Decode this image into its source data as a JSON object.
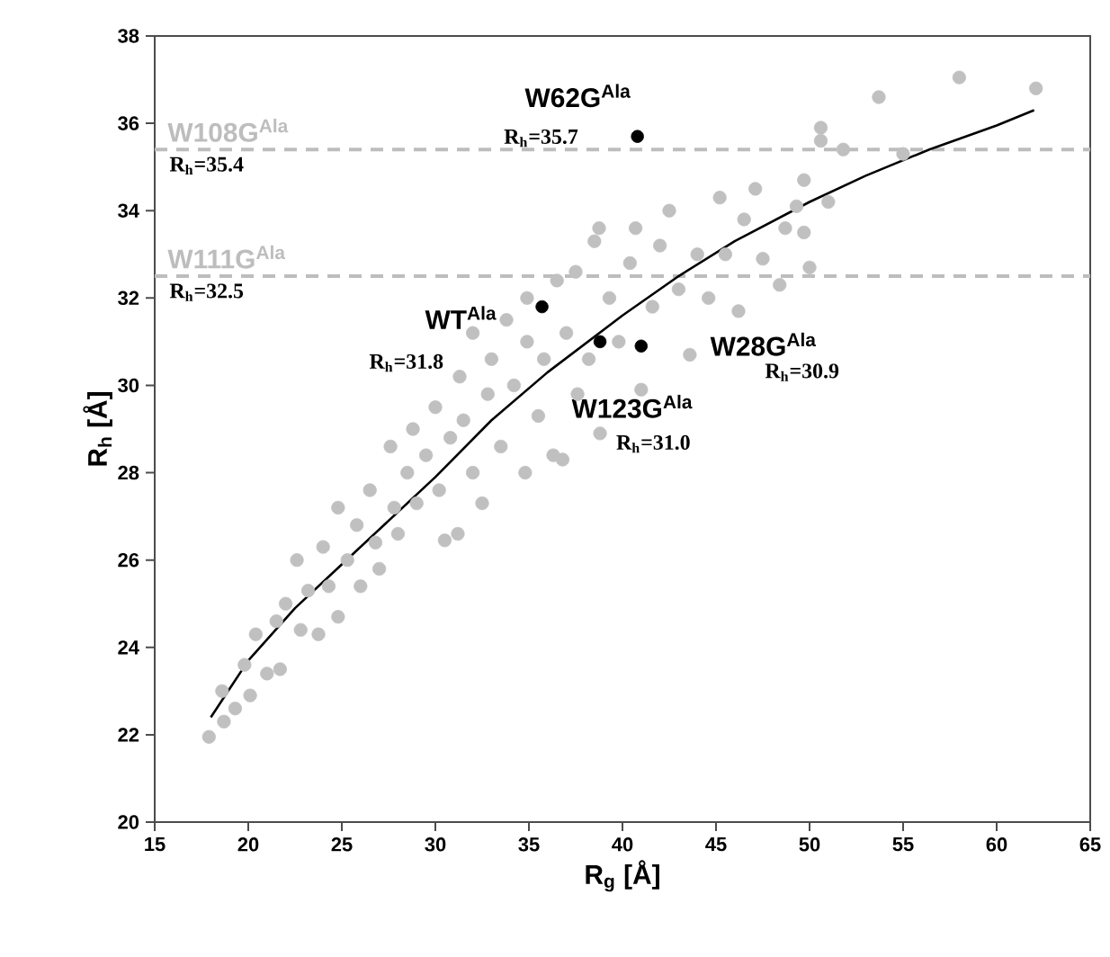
{
  "chart_data": {
    "type": "scatter",
    "xlabel": "R$_{g}$ [Å]",
    "ylabel": "R$_{h}$ [Å]",
    "xlim": [
      15,
      65
    ],
    "ylim": [
      20,
      38
    ],
    "xticks": [
      15,
      20,
      25,
      30,
      35,
      40,
      45,
      50,
      55,
      60,
      65
    ],
    "yticks": [
      20,
      22,
      24,
      26,
      28,
      30,
      32,
      34,
      36,
      38
    ],
    "grid": false,
    "series": [
      {
        "marker": "circle",
        "color": "#c0c0c0",
        "x": [
          17.9,
          18.7,
          18.6,
          19.3,
          20.1,
          19.8,
          20.4,
          21.0,
          21.7,
          21.5,
          22.0,
          22.6,
          22.8,
          23.2,
          23.75,
          24.0,
          24.3,
          24.8,
          24.8,
          25.3,
          25.8,
          26.0,
          26.5,
          26.8,
          27.0,
          27.6,
          27.8,
          28.0,
          28.5,
          28.8,
          29.0,
          29.5,
          30.0,
          30.2,
          30.5,
          30.8,
          31.2,
          31.3,
          31.5,
          32.0,
          32.0,
          32.5,
          32.8,
          33.0,
          33.5,
          33.8,
          34.2,
          34.8,
          34.9,
          34.9,
          35.5,
          35.8,
          36.3,
          36.5,
          36.8,
          37.0,
          37.5,
          37.6,
          38.2,
          38.5,
          38.75,
          38.8,
          39.3,
          39.8,
          40.4,
          40.7,
          41.0,
          41.6,
          42.0,
          42.5,
          43.0,
          43.6,
          44.0,
          44.6,
          45.2,
          45.5,
          46.2,
          46.5,
          47.1,
          47.5,
          48.4,
          48.7,
          49.3,
          49.7,
          49.7,
          50.0,
          50.6,
          50.6,
          51.0,
          51.8,
          53.7,
          55.0,
          58.0,
          62.1
        ],
        "values": [
          21.95,
          22.3,
          23.0,
          22.6,
          22.9,
          23.6,
          24.3,
          23.4,
          23.5,
          24.6,
          25.0,
          26.0,
          24.4,
          25.3,
          24.3,
          26.3,
          25.4,
          24.7,
          27.2,
          26.0,
          26.8,
          25.4,
          27.6,
          26.4,
          25.8,
          28.6,
          27.2,
          26.6,
          28.0,
          29.0,
          27.3,
          28.4,
          29.5,
          27.6,
          26.45,
          28.8,
          26.6,
          30.2,
          29.2,
          28.0,
          31.2,
          27.3,
          29.8,
          30.6,
          28.6,
          31.5,
          30.0,
          28.0,
          31.0,
          32.0,
          29.3,
          30.6,
          28.4,
          32.4,
          28.3,
          31.2,
          32.6,
          29.8,
          30.6,
          33.3,
          33.6,
          28.9,
          32.0,
          31.0,
          32.8,
          33.6,
          29.9,
          31.8,
          33.2,
          34.0,
          32.2,
          30.7,
          33.0,
          32.0,
          34.3,
          33.0,
          31.7,
          33.8,
          34.5,
          32.9,
          32.3,
          33.6,
          34.1,
          34.7,
          33.5,
          32.7,
          35.9,
          35.6,
          34.2,
          35.4,
          36.6,
          35.3,
          37.05,
          36.8
        ]
      },
      {
        "type": "line",
        "marker": "none",
        "color": "#000000",
        "x": [
          18,
          20,
          22.5,
          25,
          27.5,
          30,
          33,
          36,
          40,
          43,
          46,
          50,
          53,
          56.4,
          60,
          62
        ],
        "values": [
          22.4,
          23.7,
          24.9,
          25.9,
          26.9,
          27.9,
          29.2,
          30.3,
          31.6,
          32.5,
          33.3,
          34.2,
          34.8,
          35.4,
          35.95,
          36.3
        ]
      },
      {
        "marker": "circle",
        "color": "#000000",
        "x": [
          40.8,
          35.7,
          38.8,
          41.0
        ],
        "values": [
          35.7,
          31.8,
          31.0,
          30.9
        ]
      }
    ],
    "ref_lines": [
      {
        "axis": "y",
        "value": 35.4,
        "label": "W108G$^{Ala}$",
        "color": "#bdbdbd",
        "line_style": "dashed"
      },
      {
        "axis": "y",
        "value": 32.5,
        "label": "W111G$^{Ala}$",
        "color": "#bdbdbd",
        "line_style": "dashed"
      }
    ],
    "annotations": [
      {
        "text": "W62G$^{Ala}$",
        "x": 40.8,
        "y": 35.7
      },
      "R$_{h}$=35.7",
      {
        "text": "WT$^{Ala}$",
        "x": 35.7,
        "y": 31.8
      },
      "R$_{h}$=31.8",
      {
        "text": "W123G$^{Ala}$",
        "x": 38.8,
        "y": 31.0
      },
      "R$_{h}$=31.0",
      {
        "text": "W28G$^{Ala}$",
        "x": 41.0,
        "y": 30.9
      },
      "R$_{h}$=30.9",
      {
        "text": "R$_{h}$=35.4",
        "x": 15,
        "y": 35.4
      },
      {
        "text": "R$_{h}$=32.5",
        "x": 15,
        "y": 32.5
      }
    ]
  }
}
